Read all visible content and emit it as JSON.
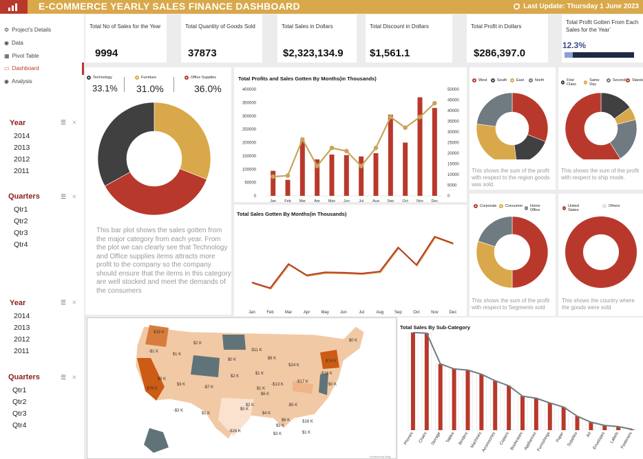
{
  "header": {
    "title": "E-COMMERCE YEARLY SALES FINANCE DASHBOARD",
    "last_update": "Last Update: Thursday 1 June 2023"
  },
  "nav": {
    "items": [
      {
        "label": "Project's Details",
        "icon": "settings-icon"
      },
      {
        "label": "Data",
        "icon": "circle-icon"
      },
      {
        "label": "Pivot Table",
        "icon": "table-icon"
      },
      {
        "label": "Dashboard",
        "icon": "dashboard-icon"
      },
      {
        "label": "Analysis",
        "icon": "circle-icon"
      }
    ],
    "active": "Dashboard"
  },
  "slicers": {
    "year_label": "Year",
    "years": [
      "2014",
      "2013",
      "2012",
      "2011"
    ],
    "quarters_label": "Quarters",
    "quarters": [
      "Qtr1",
      "Qtr2",
      "Qtr3",
      "Qtr4"
    ]
  },
  "kpis": [
    {
      "label": "Total No of Sales for the Year",
      "value": "9994"
    },
    {
      "label": "Total Quantity of Goods Sold",
      "value": "37873"
    },
    {
      "label": "Total Sales in Dollars",
      "value": "$2,323,134.9"
    },
    {
      "label": "Total Discount in Dollars",
      "value": "$1,561.1"
    },
    {
      "label": "Total Profit in Dollars",
      "value": "$286,397.0"
    },
    {
      "label": "Total Profit Gotten From Each Sales for the Year`",
      "value": "12.3%",
      "progress": 0.123
    }
  ],
  "category": {
    "legend": [
      {
        "label": "Technology",
        "pct": "33.1%",
        "color": "#404040"
      },
      {
        "label": "Furniture",
        "pct": "31.0%",
        "color": "#d9a84a"
      },
      {
        "label": "Office Supplies",
        "pct": "36.0%",
        "color": "#b8392b"
      }
    ],
    "description": "This bar plot shows the sales gotten from the major category from each year. From the plot we can clearly see that Technology and Office supplies items attracts more profit to the company so the company should ensure that the items in this category are well stocked and meet the demands of the consumers"
  },
  "chart_data": [
    {
      "type": "bar",
      "title": "Total Profits and Sales Gotten By Months(in Thousands)",
      "categories": [
        "Jan",
        "Feb",
        "Mar",
        "Apr",
        "May",
        "Jun",
        "Jul",
        "Aug",
        "Sep",
        "Oct",
        "Nov",
        "Dec"
      ],
      "series": [
        {
          "values": [
            94000,
            60000,
            205000,
            137000,
            155000,
            153000,
            148000,
            160000,
            305000,
            200000,
            370000,
            330000
          ],
          "color": "#b8392b",
          "axis": "left"
        },
        {
          "type": "line",
          "values": [
            9000,
            9500,
            26500,
            14000,
            22500,
            21000,
            14000,
            22500,
            37000,
            32000,
            37000,
            43500
          ],
          "color": "#c8a45a",
          "axis": "right"
        }
      ],
      "ylim": [
        0,
        400000
      ],
      "y2lim": [
        0,
        50000
      ],
      "yticks": [
        "0",
        "50000",
        "100000",
        "150000",
        "200000",
        "250000",
        "300000",
        "350000",
        "400000"
      ],
      "y2ticks": [
        "0",
        "5000",
        "10000",
        "15000",
        "20000",
        "25000",
        "30000",
        "35000",
        "40000",
        "45000",
        "50000"
      ]
    },
    {
      "type": "line",
      "title": "Total Sales Gotten By Months(in Thousands)",
      "categories": [
        "Jan",
        "Feb",
        "Mar",
        "Apr",
        "May",
        "Jun",
        "Jul",
        "Aug",
        "Sep",
        "Oct",
        "Nov",
        "Dec"
      ],
      "series": [
        {
          "values": [
            94000,
            60000,
            205000,
            137000,
            155000,
            153000,
            148000,
            160000,
            305000,
            200000,
            370000,
            330000
          ],
          "color": "#b8392b"
        }
      ]
    },
    {
      "type": "pie",
      "legend": [
        "West",
        "South",
        "East",
        "North"
      ],
      "values": [
        31,
        17,
        29,
        23
      ],
      "colors": [
        "#b8392b",
        "#404040",
        "#d9a84a",
        "#6f7b80"
      ]
    },
    {
      "type": "pie",
      "legend": [
        "First Class",
        "Same Day",
        "Second",
        "Standard"
      ],
      "values": [
        15,
        6,
        20,
        59
      ],
      "colors": [
        "#404040",
        "#d9a84a",
        "#6f7b80",
        "#b8392b"
      ]
    },
    {
      "type": "pie",
      "legend": [
        "Corporate",
        "Consumer",
        "Home Office"
      ],
      "values": [
        50,
        30,
        20
      ],
      "colors": [
        "#b8392b",
        "#d9a84a",
        "#6f7b80"
      ]
    },
    {
      "type": "pie",
      "legend": [
        "United States",
        "Others"
      ],
      "values": [
        100,
        0
      ],
      "colors": [
        "#b8392b",
        "#dddddd"
      ]
    },
    {
      "type": "bar",
      "title": "Total Sales By Sub-Category",
      "categories": [
        "Phones",
        "Chairs",
        "Storage",
        "Tables",
        "Binders",
        "Machines",
        "Accessories",
        "Copiers",
        "Bookcases",
        "Appliances",
        "Furnishings",
        "Paper",
        "Supplies",
        "Art",
        "Envelopes",
        "Labels",
        "Fasteners"
      ],
      "values": [
        330000,
        328000,
        224000,
        207000,
        203000,
        189000,
        167000,
        150000,
        115000,
        108000,
        92000,
        78000,
        47000,
        27000,
        16000,
        12000,
        3000
      ]
    }
  ],
  "pie_descriptions": {
    "region": "This shows the sum of the profit with respect to the region goods was sold.",
    "ship": "This shows the sum of the profit with respect to ship mode.",
    "segment": "This shows the sum of the profit with respect to Segments sold",
    "country": "This shows the country where the goods were sold"
  },
  "map": {
    "labels": [
      "$33 K",
      "$2 K",
      "$0 K",
      "-$1 K",
      "$1 K",
      "$11 K",
      "$8 K",
      "$24 K",
      "$74 K",
      "$3 K",
      "$0 K",
      "$2 K",
      "$1 K",
      "-$7 K",
      "$76 K",
      "$3 K",
      "$1 K",
      "$6 K",
      "-$13 K",
      "-$17 K",
      "$2 K",
      "-$16 K",
      "$0 K",
      "-$3 K",
      "$1 K",
      "$5 K",
      "$4 K",
      "-$5 K",
      "$6 K",
      "$16 K",
      "-$26 K",
      "$3 K",
      "$1 K",
      "$3 K"
    ],
    "credit": "Powered by Bing"
  }
}
